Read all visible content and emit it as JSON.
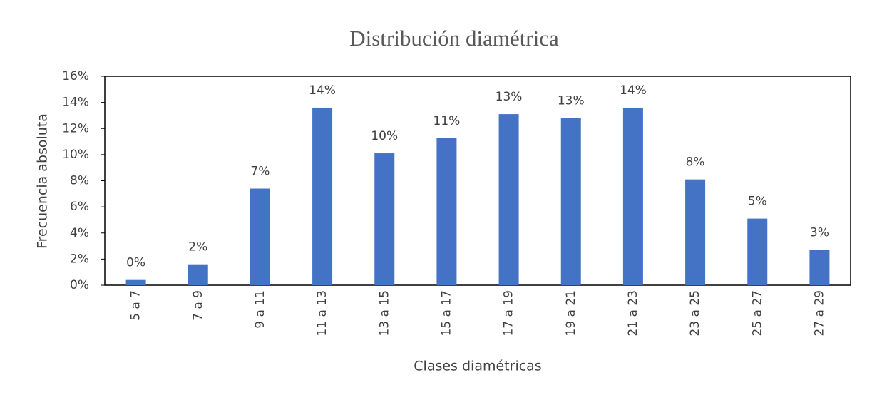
{
  "chart_data": {
    "type": "bar",
    "title": "Distribución diamétrica",
    "x_label": "Clases diamétricas",
    "y_label": "Frecuencia absoluta",
    "categories": [
      "5 a 7",
      "7 a 9",
      "9 a 11",
      "11 a 13",
      "13 a 15",
      "15 a 17",
      "17 a 19",
      "19 a 21",
      "21 a 23",
      "23 a 25",
      "25 a 27",
      "27 a 29"
    ],
    "values": [
      0.4,
      1.6,
      7.4,
      13.6,
      10.1,
      11.25,
      13.1,
      12.8,
      13.6,
      8.1,
      5.1,
      2.7
    ],
    "value_labels": [
      "0%",
      "2%",
      "7%",
      "14%",
      "10%",
      "11%",
      "13%",
      "13%",
      "14%",
      "8%",
      "5%",
      "3%"
    ],
    "color": "#4472c4",
    "ylim": [
      0,
      16
    ],
    "yticks": [
      {
        "value": 0,
        "label": "0%"
      },
      {
        "value": 2,
        "label": "2%"
      },
      {
        "value": 4,
        "label": "4%"
      },
      {
        "value": 6,
        "label": "6%"
      },
      {
        "value": 8,
        "label": "8%"
      },
      {
        "value": 10,
        "label": "10%"
      },
      {
        "value": 12,
        "label": "12%"
      },
      {
        "value": 14,
        "label": "14%"
      },
      {
        "value": 16,
        "label": "16%"
      }
    ],
    "grid": false
  }
}
